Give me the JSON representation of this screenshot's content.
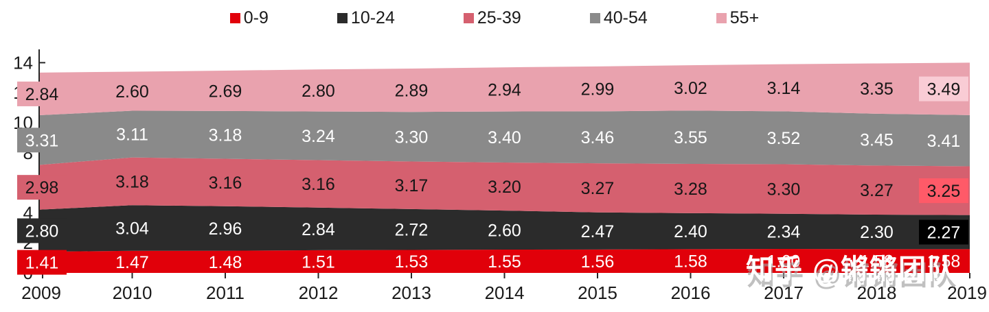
{
  "watermark": {
    "text": "知乎 @锵锵团队"
  },
  "chart_data": {
    "type": "area",
    "stacked": true,
    "title": "",
    "xlabel": "",
    "ylabel": "",
    "x_labels": [
      "2009",
      "2010",
      "2011",
      "2012",
      "2013",
      "2014",
      "2015",
      "2016",
      "2017",
      "2018",
      "2019"
    ],
    "yticks": [
      "0",
      "2",
      "4",
      "6",
      "8",
      "10",
      "12",
      "14"
    ],
    "ylim": [
      0,
      14
    ],
    "grid": false,
    "legend_position": "top",
    "series": [
      {
        "name": "0-9",
        "color": "#e1000a",
        "label_color": "#ffffff",
        "values": [
          "1.41",
          "1.47",
          "1.48",
          "1.51",
          "1.53",
          "1.55",
          "1.56",
          "1.58",
          "1.60",
          "1.58",
          "1.58"
        ],
        "first_box": true,
        "last_highlight": null
      },
      {
        "name": "10-24",
        "color": "#2b2b2b",
        "label_color": "#ffffff",
        "values": [
          "2.80",
          "3.04",
          "2.96",
          "2.84",
          "2.72",
          "2.60",
          "2.47",
          "2.40",
          "2.34",
          "2.30",
          "2.27"
        ],
        "first_box": true,
        "last_highlight": "#000000"
      },
      {
        "name": "25-39",
        "color": "#d5606f",
        "label_color": "#161616",
        "values": [
          "2.98",
          "3.18",
          "3.16",
          "3.16",
          "3.17",
          "3.20",
          "3.27",
          "3.28",
          "3.30",
          "3.27",
          "3.25"
        ],
        "first_box": true,
        "last_highlight": "#ff5a68"
      },
      {
        "name": "40-54",
        "color": "#8a8a8a",
        "label_color": "#ffffff",
        "values": [
          "3.31",
          "3.11",
          "3.18",
          "3.24",
          "3.30",
          "3.40",
          "3.46",
          "3.55",
          "3.52",
          "3.45",
          "3.41"
        ],
        "first_box": true,
        "last_highlight": null
      },
      {
        "name": "55+",
        "color": "#e9a2ae",
        "label_color": "#161616",
        "values": [
          "2.84",
          "2.60",
          "2.69",
          "2.80",
          "2.89",
          "2.94",
          "2.99",
          "3.02",
          "3.14",
          "3.35",
          "3.49"
        ],
        "first_box": true,
        "last_highlight": "#f9ccd5"
      }
    ]
  }
}
